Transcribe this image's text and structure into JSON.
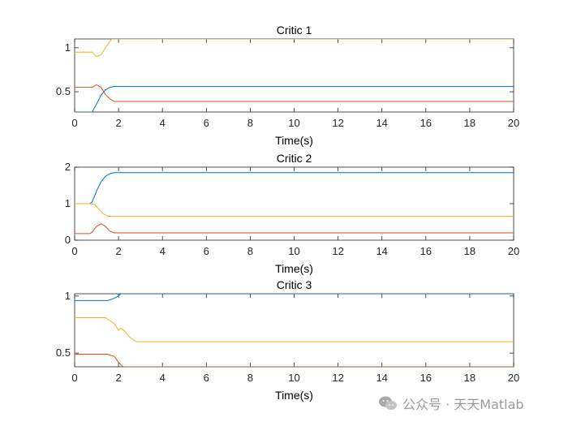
{
  "colors": {
    "series1": "#0072BD",
    "series2": "#D95319",
    "series3": "#EDB120",
    "axes": "#262626",
    "watermark": "#9a9a9a"
  },
  "watermark": {
    "text": "公众号 · 天天Matlab",
    "icon": "wechat-icon"
  },
  "chart_data": [
    {
      "type": "line",
      "title": "Critic 1",
      "xlabel": "Time(s)",
      "ylabel": "",
      "xlim": [
        0,
        20
      ],
      "ylim": [
        0.27,
        1.1
      ],
      "xticks": [
        0,
        2,
        4,
        6,
        8,
        10,
        12,
        14,
        16,
        18,
        20
      ],
      "yticks": [
        0.5,
        1
      ],
      "ytick_labels": [
        "0.5",
        "1"
      ],
      "grid": false,
      "legend": "none",
      "series": [
        {
          "color": "#0072BD",
          "x": [
            0,
            0.8,
            1.0,
            1.2,
            1.4,
            1.6,
            1.8,
            2.2,
            20
          ],
          "y": [
            0.27,
            0.27,
            0.36,
            0.46,
            0.52,
            0.55,
            0.56,
            0.56,
            0.56
          ]
        },
        {
          "color": "#D95319",
          "x": [
            0,
            0.8,
            1.0,
            1.2,
            1.4,
            1.6,
            1.8,
            2.2,
            20
          ],
          "y": [
            0.55,
            0.55,
            0.58,
            0.55,
            0.47,
            0.42,
            0.39,
            0.39,
            0.39
          ]
        },
        {
          "color": "#EDB120",
          "x": [
            0,
            0.8,
            1.0,
            1.2,
            1.4,
            1.6,
            1.7,
            20
          ],
          "y": [
            0.95,
            0.95,
            0.9,
            0.92,
            1.0,
            1.07,
            1.1,
            1.1
          ]
        }
      ]
    },
    {
      "type": "line",
      "title": "Critic 2",
      "xlabel": "Time(s)",
      "ylabel": "",
      "xlim": [
        0,
        20
      ],
      "ylim": [
        0,
        2
      ],
      "xticks": [
        0,
        2,
        4,
        6,
        8,
        10,
        12,
        14,
        16,
        18,
        20
      ],
      "yticks": [
        0,
        1,
        2
      ],
      "ytick_labels": [
        "0",
        "1",
        "2"
      ],
      "grid": false,
      "legend": "none",
      "series": [
        {
          "color": "#0072BD",
          "x": [
            0,
            0.7,
            0.8,
            1.0,
            1.2,
            1.4,
            1.6,
            1.8,
            20
          ],
          "y": [
            1.0,
            1.0,
            1.05,
            1.35,
            1.6,
            1.75,
            1.82,
            1.85,
            1.85
          ]
        },
        {
          "color": "#D95319",
          "x": [
            0,
            0.7,
            0.8,
            1.0,
            1.2,
            1.4,
            1.6,
            1.8,
            20
          ],
          "y": [
            0.18,
            0.18,
            0.22,
            0.38,
            0.45,
            0.38,
            0.25,
            0.2,
            0.2
          ]
        },
        {
          "color": "#EDB120",
          "x": [
            0,
            0.7,
            0.9,
            1.1,
            1.3,
            1.5,
            1.7,
            20
          ],
          "y": [
            1.0,
            1.0,
            0.98,
            0.85,
            0.72,
            0.66,
            0.65,
            0.65
          ]
        }
      ]
    },
    {
      "type": "line",
      "title": "Critic 3",
      "xlabel": "Time(s)",
      "ylabel": "",
      "xlim": [
        0,
        20
      ],
      "ylim": [
        0.38,
        1.02
      ],
      "xticks": [
        0,
        2,
        4,
        6,
        8,
        10,
        12,
        14,
        16,
        18,
        20
      ],
      "yticks": [
        0.5,
        1
      ],
      "ytick_labels": [
        "0.5",
        "1"
      ],
      "grid": false,
      "legend": "none",
      "series": [
        {
          "color": "#0072BD",
          "x": [
            0,
            1.5,
            1.8,
            2.0,
            2.1,
            20
          ],
          "y": [
            0.96,
            0.96,
            0.98,
            1.0,
            1.02,
            1.02
          ]
        },
        {
          "color": "#D95319",
          "x": [
            0,
            1.5,
            1.8,
            2.0,
            2.2,
            20
          ],
          "y": [
            0.49,
            0.49,
            0.47,
            0.42,
            0.38,
            0.38
          ]
        },
        {
          "color": "#EDB120",
          "x": [
            0,
            1.4,
            1.8,
            2.0,
            2.1,
            2.3,
            2.5,
            2.8,
            20
          ],
          "y": [
            0.81,
            0.81,
            0.76,
            0.7,
            0.72,
            0.69,
            0.64,
            0.6,
            0.6
          ]
        }
      ]
    }
  ]
}
